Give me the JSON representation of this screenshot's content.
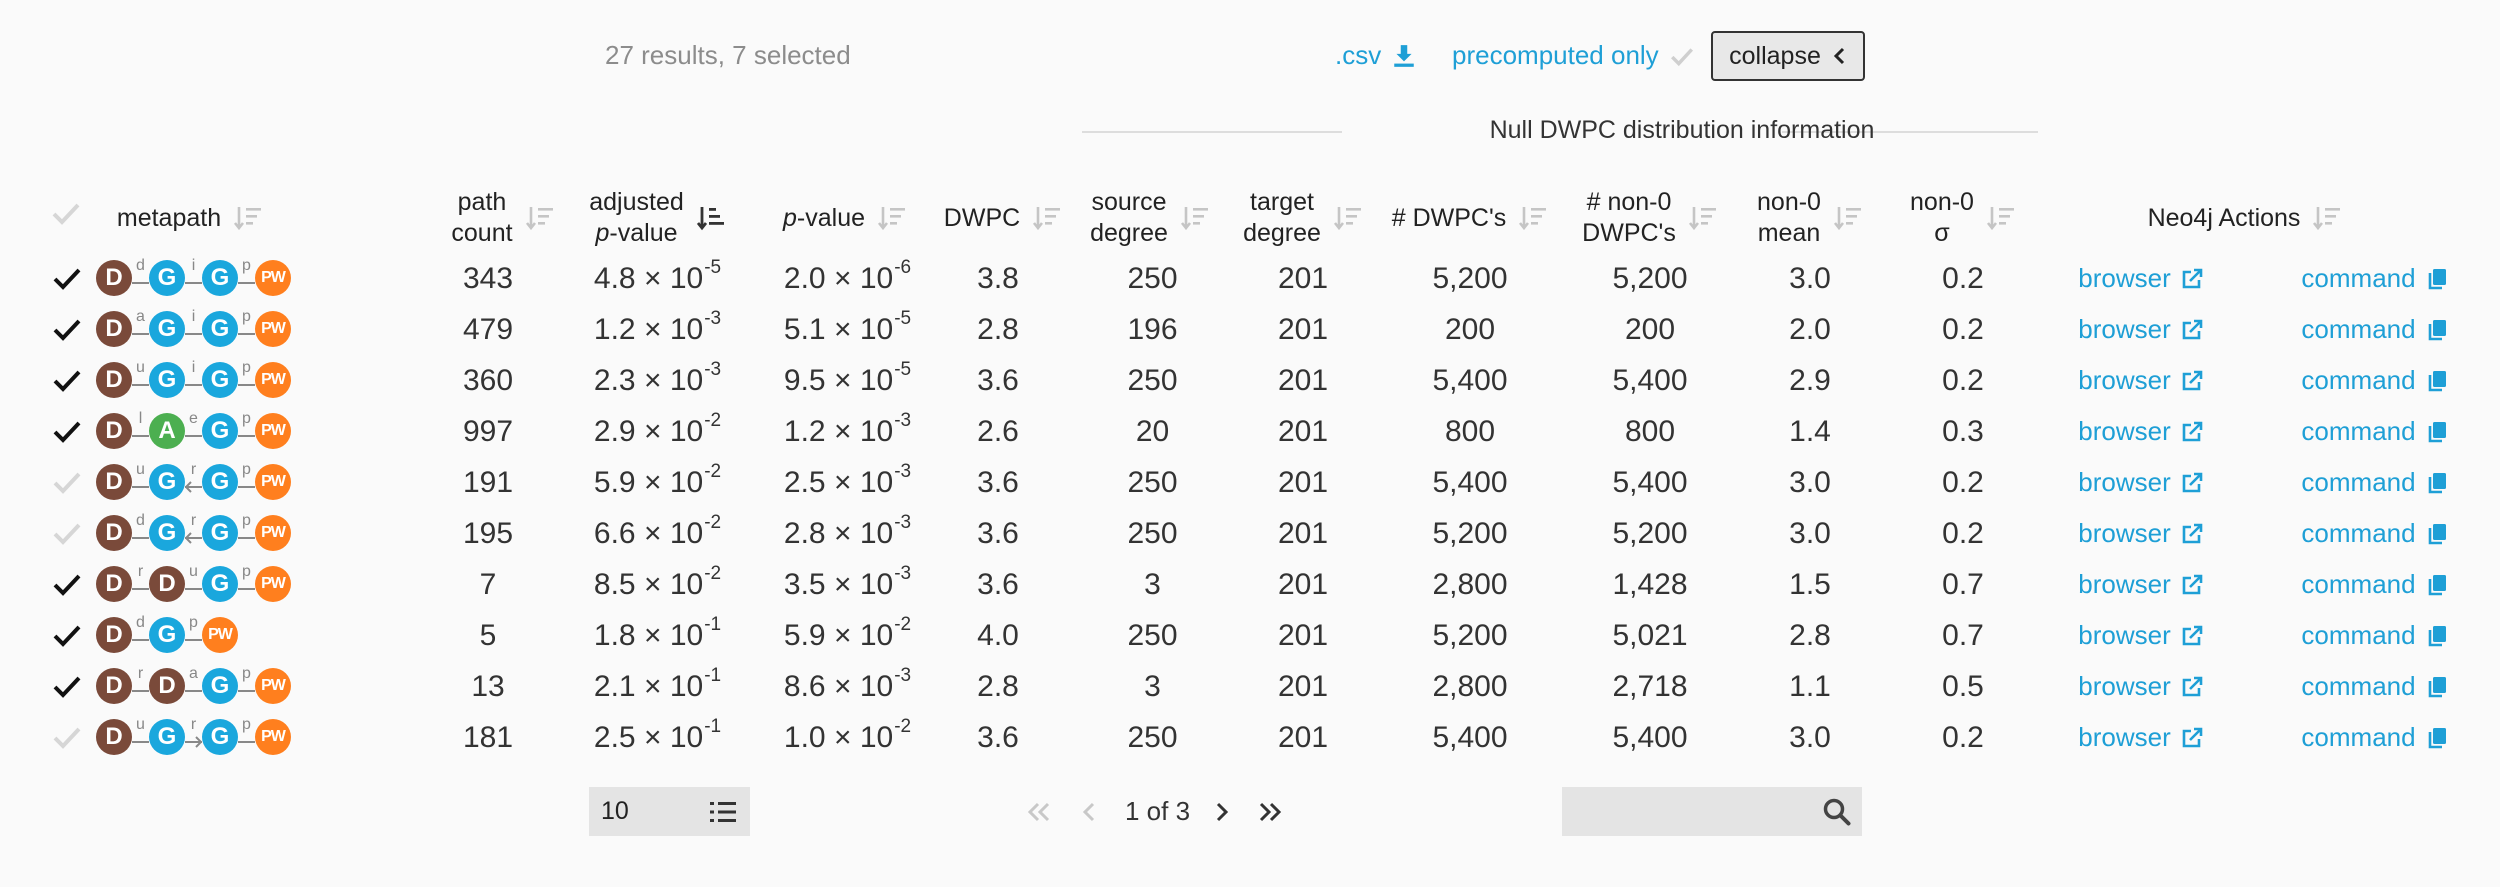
{
  "summary": {
    "results_text": "27 results, 7 selected"
  },
  "toolbar": {
    "csv_label": ".csv",
    "precomputed_label": "precomputed only",
    "collapse_label": "collapse"
  },
  "section_title": "Null DWPC distribution information",
  "columns": {
    "metapath": "metapath",
    "path_count_1": "path",
    "path_count_2": "count",
    "adjusted_1": "adjusted",
    "adjusted_2_italic": "p",
    "adjusted_2_rest": "-value",
    "pvalue_italic": "p",
    "pvalue_rest": "-value",
    "dwpc": "DWPC",
    "source_degree_1": "source",
    "source_degree_2": "degree",
    "target_degree_1": "target",
    "target_degree_2": "degree",
    "n_dwpcs": "# DWPC's",
    "n_nonzero_1": "# non-0",
    "n_nonzero_2": "DWPC's",
    "nonzero_mean_1": "non-0",
    "nonzero_mean_2": "mean",
    "nonzero_sd_1": "non-0",
    "nonzero_sd_2": "σ",
    "neo4j": "Neo4j Actions"
  },
  "colors": {
    "D": "#7a4a3a",
    "G": "#1aa7dd",
    "A": "#4caf50",
    "PW": "#ff7f1e",
    "link": "#1e9fd6",
    "check_on": "#111111",
    "check_off": "#d6d6d6"
  },
  "rows": [
    {
      "checked": true,
      "metapath": [
        {
          "n": "D"
        },
        {
          "e": "d",
          "d": "none"
        },
        {
          "n": "G"
        },
        {
          "e": "i",
          "d": "none"
        },
        {
          "n": "G"
        },
        {
          "e": "p",
          "d": "none"
        },
        {
          "n": "PW"
        }
      ],
      "path_count": "343",
      "adj_m": "4.8",
      "adj_e": "-5",
      "p_m": "2.0",
      "p_e": "-6",
      "dwpc": "3.8",
      "source_degree": "250",
      "target_degree": "201",
      "n_dwpcs": "5,200",
      "n_nonzero": "5,200",
      "nz_mean": "3.0",
      "nz_sd": "0.2",
      "browser": "browser",
      "command": "command"
    },
    {
      "checked": true,
      "metapath": [
        {
          "n": "D"
        },
        {
          "e": "a",
          "d": "none"
        },
        {
          "n": "G"
        },
        {
          "e": "i",
          "d": "none"
        },
        {
          "n": "G"
        },
        {
          "e": "p",
          "d": "none"
        },
        {
          "n": "PW"
        }
      ],
      "path_count": "479",
      "adj_m": "1.2",
      "adj_e": "-3",
      "p_m": "5.1",
      "p_e": "-5",
      "dwpc": "2.8",
      "source_degree": "196",
      "target_degree": "201",
      "n_dwpcs": "200",
      "n_nonzero": "200",
      "nz_mean": "2.0",
      "nz_sd": "0.2",
      "browser": "browser",
      "command": "command"
    },
    {
      "checked": true,
      "metapath": [
        {
          "n": "D"
        },
        {
          "e": "u",
          "d": "none"
        },
        {
          "n": "G"
        },
        {
          "e": "i",
          "d": "none"
        },
        {
          "n": "G"
        },
        {
          "e": "p",
          "d": "none"
        },
        {
          "n": "PW"
        }
      ],
      "path_count": "360",
      "adj_m": "2.3",
      "adj_e": "-3",
      "p_m": "9.5",
      "p_e": "-5",
      "dwpc": "3.6",
      "source_degree": "250",
      "target_degree": "201",
      "n_dwpcs": "5,400",
      "n_nonzero": "5,400",
      "nz_mean": "2.9",
      "nz_sd": "0.2",
      "browser": "browser",
      "command": "command"
    },
    {
      "checked": true,
      "metapath": [
        {
          "n": "D"
        },
        {
          "e": "l",
          "d": "none"
        },
        {
          "n": "A"
        },
        {
          "e": "e",
          "d": "none"
        },
        {
          "n": "G"
        },
        {
          "e": "p",
          "d": "none"
        },
        {
          "n": "PW"
        }
      ],
      "path_count": "997",
      "adj_m": "2.9",
      "adj_e": "-2",
      "p_m": "1.2",
      "p_e": "-3",
      "dwpc": "2.6",
      "source_degree": "20",
      "target_degree": "201",
      "n_dwpcs": "800",
      "n_nonzero": "800",
      "nz_mean": "1.4",
      "nz_sd": "0.3",
      "browser": "browser",
      "command": "command"
    },
    {
      "checked": false,
      "metapath": [
        {
          "n": "D"
        },
        {
          "e": "u",
          "d": "none"
        },
        {
          "n": "G"
        },
        {
          "e": "r",
          "d": "left"
        },
        {
          "n": "G"
        },
        {
          "e": "p",
          "d": "none"
        },
        {
          "n": "PW"
        }
      ],
      "path_count": "191",
      "adj_m": "5.9",
      "adj_e": "-2",
      "p_m": "2.5",
      "p_e": "-3",
      "dwpc": "3.6",
      "source_degree": "250",
      "target_degree": "201",
      "n_dwpcs": "5,400",
      "n_nonzero": "5,400",
      "nz_mean": "3.0",
      "nz_sd": "0.2",
      "browser": "browser",
      "command": "command"
    },
    {
      "checked": false,
      "metapath": [
        {
          "n": "D"
        },
        {
          "e": "d",
          "d": "none"
        },
        {
          "n": "G"
        },
        {
          "e": "r",
          "d": "left"
        },
        {
          "n": "G"
        },
        {
          "e": "p",
          "d": "none"
        },
        {
          "n": "PW"
        }
      ],
      "path_count": "195",
      "adj_m": "6.6",
      "adj_e": "-2",
      "p_m": "2.8",
      "p_e": "-3",
      "dwpc": "3.6",
      "source_degree": "250",
      "target_degree": "201",
      "n_dwpcs": "5,200",
      "n_nonzero": "5,200",
      "nz_mean": "3.0",
      "nz_sd": "0.2",
      "browser": "browser",
      "command": "command"
    },
    {
      "checked": true,
      "metapath": [
        {
          "n": "D"
        },
        {
          "e": "r",
          "d": "none"
        },
        {
          "n": "D"
        },
        {
          "e": "u",
          "d": "none"
        },
        {
          "n": "G"
        },
        {
          "e": "p",
          "d": "none"
        },
        {
          "n": "PW"
        }
      ],
      "path_count": "7",
      "adj_m": "8.5",
      "adj_e": "-2",
      "p_m": "3.5",
      "p_e": "-3",
      "dwpc": "3.6",
      "source_degree": "3",
      "target_degree": "201",
      "n_dwpcs": "2,800",
      "n_nonzero": "1,428",
      "nz_mean": "1.5",
      "nz_sd": "0.7",
      "browser": "browser",
      "command": "command"
    },
    {
      "checked": true,
      "metapath": [
        {
          "n": "D"
        },
        {
          "e": "d",
          "d": "none"
        },
        {
          "n": "G"
        },
        {
          "e": "p",
          "d": "none"
        },
        {
          "n": "PW"
        }
      ],
      "path_count": "5",
      "adj_m": "1.8",
      "adj_e": "-1",
      "p_m": "5.9",
      "p_e": "-2",
      "dwpc": "4.0",
      "source_degree": "250",
      "target_degree": "201",
      "n_dwpcs": "5,200",
      "n_nonzero": "5,021",
      "nz_mean": "2.8",
      "nz_sd": "0.7",
      "browser": "browser",
      "command": "command"
    },
    {
      "checked": true,
      "metapath": [
        {
          "n": "D"
        },
        {
          "e": "r",
          "d": "none"
        },
        {
          "n": "D"
        },
        {
          "e": "a",
          "d": "none"
        },
        {
          "n": "G"
        },
        {
          "e": "p",
          "d": "none"
        },
        {
          "n": "PW"
        }
      ],
      "path_count": "13",
      "adj_m": "2.1",
      "adj_e": "-1",
      "p_m": "8.6",
      "p_e": "-3",
      "dwpc": "2.8",
      "source_degree": "3",
      "target_degree": "201",
      "n_dwpcs": "2,800",
      "n_nonzero": "2,718",
      "nz_mean": "1.1",
      "nz_sd": "0.5",
      "browser": "browser",
      "command": "command"
    },
    {
      "checked": false,
      "metapath": [
        {
          "n": "D"
        },
        {
          "e": "u",
          "d": "none"
        },
        {
          "n": "G"
        },
        {
          "e": "r",
          "d": "right"
        },
        {
          "n": "G"
        },
        {
          "e": "p",
          "d": "none"
        },
        {
          "n": "PW"
        }
      ],
      "path_count": "181",
      "adj_m": "2.5",
      "adj_e": "-1",
      "p_m": "1.0",
      "p_e": "-2",
      "dwpc": "3.6",
      "source_degree": "250",
      "target_degree": "201",
      "n_dwpcs": "5,400",
      "n_nonzero": "5,400",
      "nz_mean": "3.0",
      "nz_sd": "0.2",
      "browser": "browser",
      "command": "command"
    }
  ],
  "pagination": {
    "page_size": "10",
    "page_text": "1 of 3"
  },
  "search": {
    "placeholder": ""
  },
  "icons": {
    "csv": "download-icon",
    "precomputed": "check-icon",
    "collapse": "chevron-left-icon",
    "sort": "sort-icon",
    "sort_active": "sort-descending-icon",
    "browser": "external-link-icon",
    "command": "copy-icon",
    "page_size": "list-icon",
    "first": "double-chevron-left-icon",
    "prev": "chevron-left-icon",
    "next": "chevron-right-icon",
    "last": "double-chevron-right-icon",
    "search": "search-icon"
  }
}
